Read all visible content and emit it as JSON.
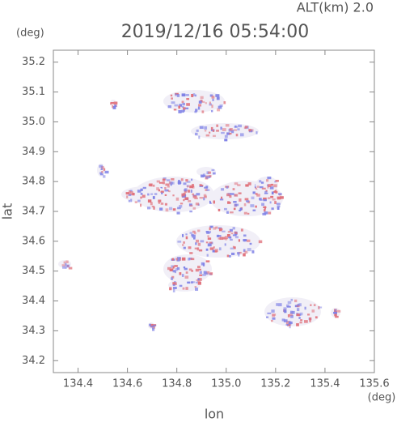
{
  "chart_data": {
    "type": "scatter",
    "title": "2019/12/16 05:54:00",
    "altitude": "ALT(km) 2.0",
    "x_label": "lon",
    "y_label": "lat",
    "x_unit": "(deg)",
    "y_unit": "(deg)",
    "xlim": [
      134.3,
      135.6
    ],
    "xticks": [
      {
        "value": 134.4,
        "label": "134.4"
      },
      {
        "value": 134.6,
        "label": "134.6"
      },
      {
        "value": 134.8,
        "label": "134.8"
      },
      {
        "value": 135.0,
        "label": "135.0"
      },
      {
        "value": 135.2,
        "label": "135.2"
      },
      {
        "value": 135.4,
        "label": "135.4"
      },
      {
        "value": 135.6,
        "label": "135.6"
      }
    ],
    "ylim": [
      34.16,
      35.24
    ],
    "yticks": [
      {
        "value": 34.2,
        "label": "34.2"
      },
      {
        "value": 34.3,
        "label": "34.3"
      },
      34.4,
      34.5,
      34.6,
      34.7,
      34.8,
      34.9,
      {
        "value": 35.0,
        "label": "35.0"
      },
      35.1,
      35.2
    ]
  }
}
